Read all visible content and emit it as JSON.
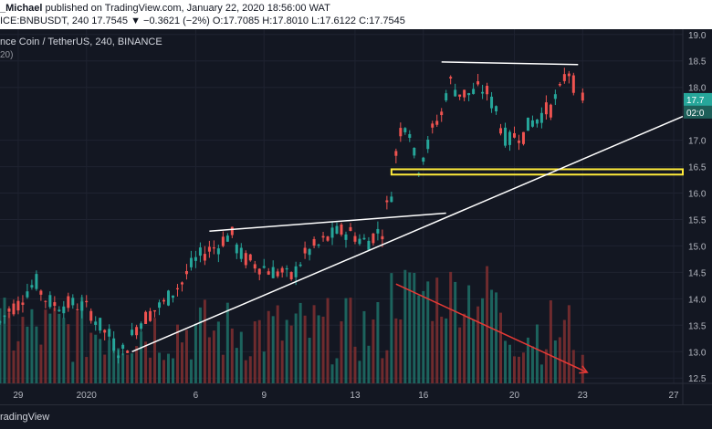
{
  "header": {
    "line1_prefix": "_Michael",
    "line1_rest": " published on TradingView.com, January 22, 2020 18:56:00 WAT",
    "line2": "ICE:BNBUSDT, 240  17.7545  ▼ −0.3621 (−2%)  O:17.7085  H:17.8010  L:17.6122  C:17.7545"
  },
  "legend": {
    "title": "nce Coin / TetherUS, 240, BINANCE",
    "subtitle": "20)"
  },
  "footer": {
    "brand": "radingView"
  },
  "colors": {
    "background": "#131722",
    "grid": "#1f2331",
    "up": "#26a69a",
    "down": "#ef5350",
    "trendline": "#ffffff",
    "support_zone": "#ffeb3b",
    "arrow": "#e53935",
    "axis_text": "#b2b5be"
  },
  "chart_data": {
    "type": "candlestick",
    "title": "",
    "ylim": [
      12.4,
      19.1
    ],
    "yticks": [
      "19.0",
      "18.5",
      "18.0",
      "17.0",
      "16.5",
      "16.0",
      "15.5",
      "15.0",
      "14.5",
      "14.0",
      "13.5",
      "13.0",
      "12.5"
    ],
    "ytick_values": [
      19.0,
      18.5,
      18.0,
      17.0,
      16.5,
      16.0,
      15.5,
      15.0,
      14.5,
      14.0,
      13.5,
      13.0,
      12.5
    ],
    "xticks": [
      "29",
      "2020",
      "6",
      "9",
      "13",
      "16",
      "20",
      "23",
      "27"
    ],
    "xtick_positions": [
      4,
      19,
      43,
      58,
      78,
      93,
      113,
      128,
      148
    ],
    "x_range": [
      0,
      150
    ],
    "price_labels": [
      "17.7",
      "02:0"
    ],
    "last_price": 17.7545,
    "candles_close_path": [
      [
        0,
        13.55,
        13.75
      ],
      [
        4,
        13.9,
        14.1
      ],
      [
        8,
        14.3,
        14.0
      ],
      [
        12,
        13.9,
        13.85
      ],
      [
        16,
        13.9,
        14.0
      ],
      [
        20,
        13.75,
        13.6
      ],
      [
        24,
        13.3,
        13.1
      ],
      [
        27,
        13.0,
        12.95
      ],
      [
        29,
        13.3,
        13.5
      ],
      [
        32,
        13.65,
        13.7
      ],
      [
        36,
        13.9,
        14.0
      ],
      [
        40,
        14.3,
        14.5
      ],
      [
        44,
        14.8,
        14.9
      ],
      [
        48,
        15.0,
        15.2
      ],
      [
        51,
        15.2,
        14.9
      ],
      [
        54,
        14.75,
        14.7
      ],
      [
        58,
        14.6,
        14.5
      ],
      [
        62,
        14.5,
        14.4
      ],
      [
        64,
        14.4,
        14.35
      ],
      [
        66,
        14.7,
        14.9
      ],
      [
        70,
        15.0,
        15.05
      ],
      [
        74,
        15.25,
        15.4
      ],
      [
        78,
        15.2,
        15.05
      ],
      [
        81,
        15.1,
        15.2
      ],
      [
        84,
        15.3,
        15.6
      ],
      [
        86,
        16.0,
        16.5
      ],
      [
        88,
        17.2,
        17.6
      ],
      [
        90,
        17.2,
        16.7
      ],
      [
        92,
        16.5,
        16.6
      ],
      [
        94,
        16.9,
        17.2
      ],
      [
        97,
        17.5,
        17.8
      ],
      [
        99,
        18.1,
        18.0
      ],
      [
        101,
        17.9,
        17.8
      ],
      [
        104,
        17.9,
        18.1
      ],
      [
        107,
        17.9,
        17.8
      ],
      [
        109,
        17.6,
        17.1
      ],
      [
        112,
        17.0,
        17.2
      ],
      [
        115,
        17.1,
        17.3
      ],
      [
        118,
        17.4,
        17.5
      ],
      [
        121,
        17.6,
        17.7
      ],
      [
        123,
        17.9,
        18.2
      ],
      [
        125,
        18.3,
        18.2
      ],
      [
        127,
        17.9,
        17.75
      ]
    ],
    "annotations": {
      "lower_trendline": [
        [
          29,
          13.0
        ],
        [
          150,
          17.45
        ]
      ],
      "upper_triangle_line": [
        [
          46,
          15.28
        ],
        [
          98,
          15.62
        ]
      ],
      "top_resistance_line": [
        [
          97,
          18.48
        ],
        [
          127,
          18.43
        ]
      ],
      "support_zone": [
        16.35,
        16.45
      ],
      "support_zone_x": [
        86,
        150
      ],
      "volume_arrow": [
        [
          87,
          0.95
        ],
        [
          129,
          0.0
        ]
      ]
    },
    "volume_max_fraction_of_panel": 0.35
  }
}
